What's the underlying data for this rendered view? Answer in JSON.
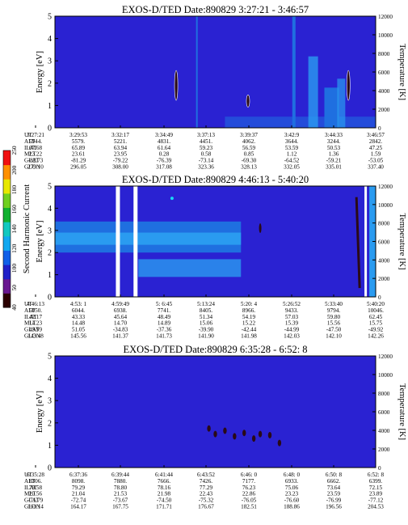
{
  "colors": {
    "background": "#2a22d2",
    "band_mid": "#1f6fe0",
    "band_light": "#2a9bf0",
    "cyan": "#19d7f2",
    "dark": "#2a0a18",
    "white": "#ffffff"
  },
  "colorbar": {
    "label": "Second Harmonic Current",
    "ticks": [
      "40",
      "50",
      "100",
      "120",
      "140",
      "160",
      "180",
      "200",
      "250"
    ],
    "colors": [
      "#2b0000",
      "#6a1890",
      "#2020c8",
      "#1060e8",
      "#10a8f0",
      "#10c8c0",
      "#10b030",
      "#70d020",
      "#e8e800",
      "#ff9000",
      "#f01010"
    ]
  },
  "chart_data": [
    {
      "type": "heatmap",
      "title": "EXOS-D/TED   Date:890829   3:27:21 - 3:46:57",
      "ylabel": "Energy [eV]",
      "y2label": "Temperature [K]",
      "ylim": [
        0,
        5
      ],
      "y2lim": [
        0,
        12000
      ],
      "yticks": [
        "0",
        "1",
        "2",
        "3",
        "4",
        "5"
      ],
      "y2ticks": [
        "0",
        "2000",
        "4000",
        "6000",
        "8000",
        "10000",
        "12000"
      ],
      "ephemeris": [
        {
          "name": "UT",
          "values": [
            "3:27:21",
            "3:29:53",
            "3:32:17",
            "3:34:49",
            "3:37:13",
            "3:39:37",
            "3:42:9",
            "3:44:33",
            "3:46:57"
          ]
        },
        {
          "name": "ALT",
          "values": [
            "5944.",
            "5579.",
            "5221.",
            "4831.",
            "4451.",
            "4062.",
            "3644.",
            "3244.",
            "2842."
          ]
        },
        {
          "name": "ILAT",
          "values": [
            "67.68",
            "65.89",
            "63.94",
            "61.64",
            "59.23",
            "56.59",
            "53.59",
            "50.53",
            "47.25"
          ]
        },
        {
          "name": "MLT",
          "values": [
            "23.22",
            "23.61",
            "23.95",
            "0.28",
            "0.58",
            "0.85",
            "1.12",
            "1.36",
            "1.59"
          ]
        },
        {
          "name": "GLAT",
          "values": [
            "-82.73",
            "-81.29",
            "-79.22",
            "-76.39",
            "-73.14",
            "-69.30",
            "-64.52",
            "-59.21",
            "-53.05"
          ]
        },
        {
          "name": "GLON",
          "values": [
            "279.10",
            "296.05",
            "308.00",
            "317.08",
            "323.36",
            "328.13",
            "332.05",
            "335.01",
            "337.40"
          ]
        }
      ]
    },
    {
      "type": "heatmap",
      "title": "EXOS-D/TED   Date:890829   4:46:13 - 5:40:20",
      "ylabel": "Energy [eV]",
      "y2label": "Temperature [K]",
      "ylim": [
        0,
        5
      ],
      "y2lim": [
        0,
        12000
      ],
      "yticks": [
        "0",
        "1",
        "2",
        "3",
        "4",
        "5"
      ],
      "y2ticks": [
        "0",
        "2000",
        "4000",
        "6000",
        "8000",
        "10000",
        "12000"
      ],
      "ephemeris": [
        {
          "name": "UT",
          "values": [
            "4:46:13",
            "4:53: 1",
            "4:59:49",
            "5: 6:45",
            "5:13:24",
            "5:20: 4",
            "5:26:52",
            "5:33:40",
            "5:40:20"
          ]
        },
        {
          "name": "ALT",
          "values": [
            "5050.",
            "6044.",
            "6938.",
            "7741.",
            "8405.",
            "8966.",
            "9433.",
            "9794.",
            "10046."
          ]
        },
        {
          "name": "ILAT",
          "values": [
            "42.17",
            "43.33",
            "45.64",
            "48.49",
            "51.34",
            "54.19",
            "57.03",
            "59.80",
            "62.45"
          ]
        },
        {
          "name": "MLT",
          "values": [
            "14.23",
            "14.48",
            "14.70",
            "14.89",
            "15.06",
            "15.22",
            "15.39",
            "15.56",
            "15.75"
          ]
        },
        {
          "name": "GLAT",
          "values": [
            "49.99",
            "51.05",
            "-34.83",
            "-37.36",
            "-39.90",
            "-42.44",
            "-44.99",
            "-47.50",
            "-49.92"
          ]
        },
        {
          "name": "GLON",
          "values": [
            "143.48",
            "145.56",
            "141.37",
            "141.73",
            "141.90",
            "141.98",
            "142.03",
            "142.10",
            "142.26"
          ]
        }
      ]
    },
    {
      "type": "heatmap",
      "title": "EXOS-D/TED   Date:890829   6:35:28 - 6:52: 8",
      "ylabel": "Energy [eV]",
      "y2label": "Temperature [K]",
      "ylim": [
        0,
        5
      ],
      "y2lim": [
        0,
        12000
      ],
      "yticks": [
        "0",
        "1",
        "2",
        "3",
        "4",
        "5"
      ],
      "y2ticks": [
        "0",
        "2000",
        "4000",
        "6000",
        "8000",
        "10000",
        "12000"
      ],
      "ephemeris": [
        {
          "name": "UT",
          "values": [
            "6:35:28",
            "6:37:36",
            "6:39:44",
            "6:41:44",
            "6:43:52",
            "6:46: 0",
            "6:48: 0",
            "6:50: 8",
            "6:52: 8"
          ]
        },
        {
          "name": "ALT",
          "values": [
            "8306.",
            "8098.",
            "7880.",
            "7666.",
            "7426.",
            "7177.",
            "6933.",
            "6662.",
            "6399."
          ]
        },
        {
          "name": "ILAT",
          "values": [
            "79.58",
            "79.29",
            "78.80",
            "78.16",
            "77.29",
            "76.23",
            "75.06",
            "73.64",
            "72.15"
          ]
        },
        {
          "name": "MLT",
          "values": [
            "20.56",
            "21.04",
            "21.53",
            "21.98",
            "22.43",
            "22.86",
            "23.23",
            "23.59",
            "23.89"
          ]
        },
        {
          "name": "GLAT",
          "values": [
            "-71.79",
            "-72.74",
            "-73.67",
            "-74.50",
            "-75.32",
            "-76.05",
            "-76.60",
            "-76.99",
            "-77.12"
          ]
        },
        {
          "name": "GLON",
          "values": [
            "161.14",
            "164.17",
            "167.75",
            "171.71",
            "176.67",
            "182.51",
            "188.86",
            "196.56",
            "204.53"
          ]
        }
      ]
    }
  ]
}
